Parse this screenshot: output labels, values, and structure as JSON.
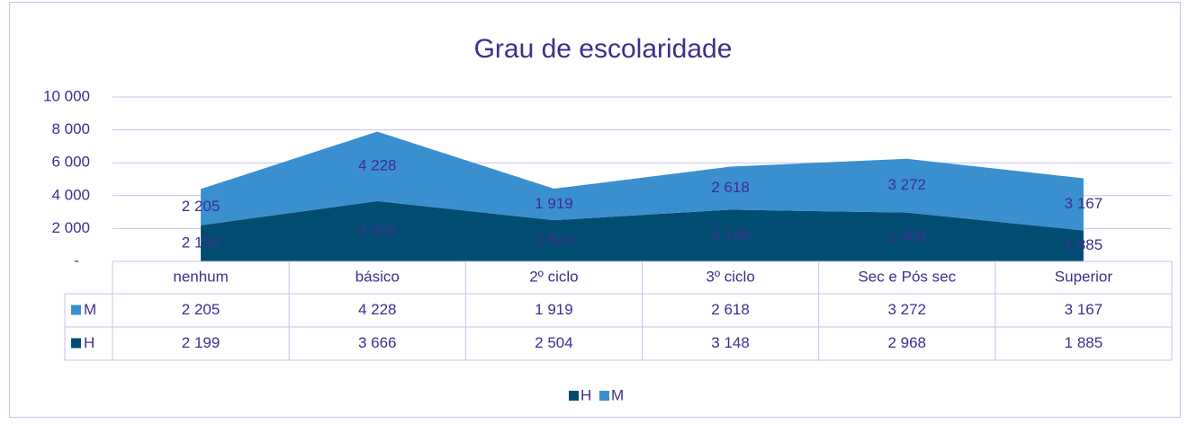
{
  "chart_data": {
    "type": "stacked_area",
    "title": "Grau de escolaridade",
    "categories": [
      "nenhum",
      "básico",
      "2º ciclo",
      "3º ciclo",
      "Sec e Pós sec",
      "Superior"
    ],
    "series": [
      {
        "name": "H",
        "color": "#004d71",
        "values": [
          2199,
          3666,
          2504,
          3148,
          2968,
          1885
        ],
        "value_labels": [
          "2 199",
          "3 666",
          "2 504",
          "3 148",
          "2 968",
          "1 885"
        ]
      },
      {
        "name": "M",
        "color": "#3a8fcf",
        "values": [
          2205,
          4228,
          1919,
          2618,
          3272,
          3167
        ],
        "value_labels": [
          "2 205",
          "4 228",
          "1 919",
          "2 618",
          "3 272",
          "3 167"
        ]
      }
    ],
    "ylim": [
      0,
      10000
    ],
    "yticks": [
      {
        "value": 0,
        "label": "-"
      },
      {
        "value": 2000,
        "label": "2 000"
      },
      {
        "value": 4000,
        "label": "4 000"
      },
      {
        "value": 6000,
        "label": "6 000"
      },
      {
        "value": 8000,
        "label": "8 000"
      },
      {
        "value": 10000,
        "label": "10 000"
      }
    ],
    "grid": true,
    "legend": "bottom",
    "data_table": true
  }
}
